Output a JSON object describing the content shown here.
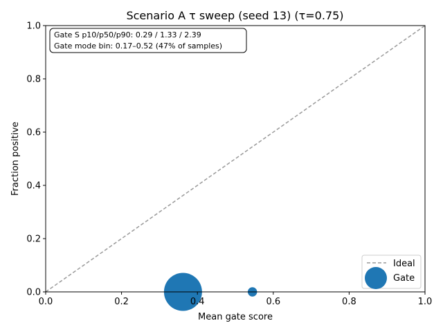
{
  "chart_data": {
    "type": "scatter",
    "title": "Scenario A τ sweep (seed 13) (τ=0.75)",
    "xlabel": "Mean gate score",
    "ylabel": "Fraction positive",
    "xlim": [
      0.0,
      1.0
    ],
    "ylim": [
      0.0,
      1.0
    ],
    "x_ticks": [
      "0.0",
      "0.2",
      "0.4",
      "0.6",
      "0.8",
      "1.0"
    ],
    "y_ticks": [
      "0.0",
      "0.2",
      "0.4",
      "0.6",
      "0.8",
      "1.0"
    ],
    "grid": false,
    "legend_position": "bottom-right",
    "series": [
      {
        "name": "Ideal",
        "kind": "line",
        "style": "dashed",
        "color": "#999999",
        "x": [
          0.0,
          1.0
        ],
        "y": [
          0.0,
          1.0
        ]
      },
      {
        "name": "Gate",
        "kind": "scatter",
        "color": "#1f77b4",
        "points": [
          {
            "x": 0.362,
            "y": 0.0,
            "relative_size": 1.0
          },
          {
            "x": 0.545,
            "y": 0.0,
            "relative_size": 0.06
          }
        ]
      }
    ],
    "annotations": [
      "Gate S p10/p50/p90: 0.29 / 1.33 / 2.39",
      "Gate mode bin: 0.17–0.52 (47% of samples)"
    ]
  }
}
